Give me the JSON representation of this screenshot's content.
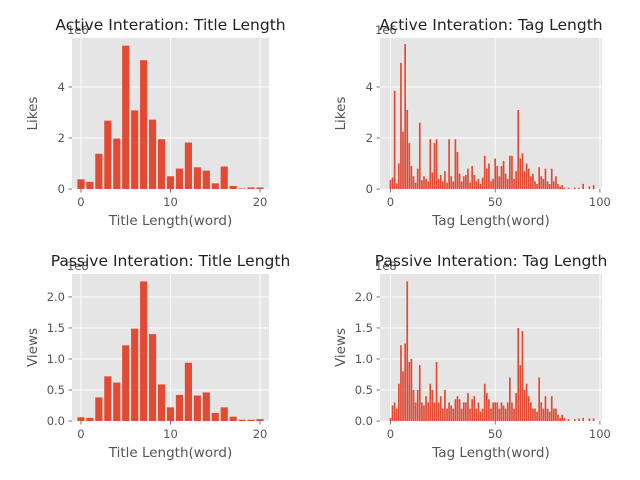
{
  "chart_data": [
    {
      "type": "bar",
      "title": "Active Interation: Title Length",
      "xlabel": "Title Length(word)",
      "ylabel": "Likes",
      "offset_text": "1e6",
      "xlim": [
        -1,
        21
      ],
      "ylim": [
        0,
        5.92
      ],
      "xticks": [
        0,
        10,
        20
      ],
      "yticks": [
        0,
        2,
        4
      ],
      "scale": 1000000,
      "grid": true,
      "bar_width": 0.8,
      "x": [
        0,
        1,
        2,
        3,
        4,
        5,
        6,
        7,
        8,
        9,
        10,
        11,
        12,
        13,
        14,
        15,
        16,
        17,
        18,
        19,
        20
      ],
      "values": [
        0.38,
        0.28,
        1.38,
        2.68,
        1.98,
        5.62,
        3.08,
        5.05,
        2.72,
        1.95,
        0.5,
        0.8,
        1.82,
        0.85,
        0.72,
        0.22,
        0.88,
        0.12,
        0.02,
        0.06,
        0.06
      ]
    },
    {
      "type": "bar",
      "title": "Active Interation: Tag Length",
      "xlabel": "Tag Length(word)",
      "ylabel": "Likes",
      "offset_text": "1e6",
      "xlim": [
        -5,
        101
      ],
      "ylim": [
        0,
        5.92
      ],
      "xticks": [
        0,
        50,
        100
      ],
      "yticks": [
        0,
        2,
        4
      ],
      "scale": 1000000,
      "grid": true,
      "bar_width": 0.8,
      "x": [
        0,
        1,
        2,
        3,
        4,
        5,
        6,
        7,
        8,
        9,
        10,
        11,
        12,
        13,
        14,
        15,
        16,
        17,
        18,
        19,
        20,
        21,
        22,
        23,
        24,
        25,
        26,
        27,
        28,
        29,
        30,
        31,
        32,
        33,
        34,
        35,
        36,
        37,
        38,
        39,
        40,
        41,
        42,
        43,
        44,
        45,
        46,
        47,
        48,
        49,
        50,
        51,
        52,
        53,
        54,
        55,
        56,
        57,
        58,
        59,
        60,
        61,
        62,
        63,
        64,
        65,
        66,
        67,
        68,
        69,
        70,
        71,
        72,
        73,
        74,
        75,
        76,
        77,
        78,
        79,
        80,
        81,
        82,
        83,
        85,
        88,
        90,
        92,
        95,
        97
      ],
      "values": [
        0.35,
        0.45,
        3.85,
        0.22,
        1.0,
        4.95,
        2.25,
        5.68,
        3.1,
        1.8,
        0.9,
        0.5,
        0.25,
        0.8,
        2.6,
        0.35,
        0.5,
        0.4,
        0.3,
        1.95,
        0.65,
        1.8,
        1.95,
        0.4,
        0.55,
        0.3,
        0.7,
        0.25,
        1.95,
        0.5,
        0.3,
        1.95,
        1.45,
        0.6,
        0.3,
        0.5,
        0.55,
        0.8,
        0.25,
        0.9,
        0.55,
        0.3,
        0.4,
        0.2,
        0.45,
        1.3,
        0.8,
        1.0,
        0.3,
        0.4,
        1.2,
        0.9,
        0.5,
        0.9,
        1.1,
        0.6,
        0.4,
        1.3,
        1.3,
        0.4,
        0.7,
        3.1,
        1.2,
        1.4,
        0.7,
        1.0,
        0.8,
        0.5,
        0.6,
        0.3,
        0.2,
        0.85,
        0.5,
        0.4,
        0.8,
        0.3,
        0.2,
        0.8,
        0.3,
        0.5,
        0.2,
        0.1,
        0.15,
        0.05,
        0.05,
        0.05,
        0.05,
        0.2,
        0.1,
        0.15
      ]
    },
    {
      "type": "bar",
      "title": "Passive Interation: Title Length",
      "xlabel": "Title Length(word)",
      "ylabel": "Views",
      "offset_text": "1e8",
      "xlim": [
        -1,
        21
      ],
      "ylim": [
        0,
        2.37
      ],
      "xticks": [
        0,
        10,
        20
      ],
      "yticks": [
        0.0,
        0.5,
        1.0,
        1.5,
        2.0
      ],
      "scale": 100000000,
      "grid": true,
      "bar_width": 0.8,
      "x": [
        0,
        1,
        2,
        3,
        4,
        5,
        6,
        7,
        8,
        9,
        10,
        11,
        12,
        13,
        14,
        15,
        16,
        17,
        18,
        19,
        20
      ],
      "values": [
        0.06,
        0.05,
        0.38,
        0.72,
        0.62,
        1.22,
        1.49,
        2.25,
        1.4,
        0.59,
        0.22,
        0.42,
        0.94,
        0.41,
        0.46,
        0.13,
        0.22,
        0.07,
        0.02,
        0.02,
        0.03
      ]
    },
    {
      "type": "bar",
      "title": "Passive Interation: Tag Length",
      "xlabel": "Tag Length(word)",
      "ylabel": "Views",
      "offset_text": "1e8",
      "xlim": [
        -5,
        101
      ],
      "ylim": [
        0,
        2.37
      ],
      "xticks": [
        0,
        50,
        100
      ],
      "yticks": [
        0.0,
        0.5,
        1.0,
        1.5,
        2.0
      ],
      "scale": 100000000,
      "grid": true,
      "bar_width": 0.8,
      "x": [
        0,
        1,
        2,
        3,
        4,
        5,
        6,
        7,
        8,
        9,
        10,
        11,
        12,
        13,
        14,
        15,
        16,
        17,
        18,
        19,
        20,
        21,
        22,
        23,
        24,
        25,
        26,
        27,
        28,
        29,
        30,
        31,
        32,
        33,
        34,
        35,
        36,
        37,
        38,
        39,
        40,
        41,
        42,
        43,
        44,
        45,
        46,
        47,
        48,
        49,
        50,
        51,
        52,
        53,
        54,
        55,
        56,
        57,
        58,
        59,
        60,
        61,
        62,
        63,
        64,
        65,
        66,
        67,
        68,
        69,
        70,
        71,
        72,
        73,
        74,
        75,
        76,
        77,
        78,
        79,
        80,
        81,
        82,
        83,
        85,
        88,
        90,
        92,
        95,
        97
      ],
      "values": [
        0.05,
        0.25,
        0.3,
        0.2,
        0.6,
        1.22,
        0.8,
        1.25,
        2.25,
        0.95,
        1.0,
        0.5,
        0.3,
        0.5,
        0.9,
        0.3,
        0.25,
        0.4,
        0.3,
        0.6,
        0.5,
        0.3,
        0.95,
        0.3,
        0.4,
        0.2,
        0.5,
        0.2,
        0.3,
        0.25,
        0.2,
        0.35,
        0.4,
        0.35,
        0.2,
        0.3,
        0.3,
        0.45,
        0.2,
        0.35,
        0.4,
        0.2,
        0.3,
        0.15,
        0.2,
        0.6,
        0.45,
        0.35,
        0.2,
        0.3,
        0.3,
        0.3,
        0.2,
        0.3,
        0.25,
        0.2,
        0.3,
        0.7,
        0.3,
        0.2,
        0.45,
        1.5,
        0.9,
        1.45,
        0.5,
        0.6,
        0.4,
        0.3,
        0.2,
        0.2,
        0.15,
        0.7,
        0.3,
        0.2,
        0.4,
        0.2,
        0.15,
        0.4,
        0.2,
        0.2,
        0.1,
        0.05,
        0.1,
        0.05,
        0.03,
        0.03,
        0.04,
        0.05,
        0.04,
        0.04
      ]
    }
  ],
  "colors": {
    "figure_background": "#ffffff",
    "axes_background": "#e5e5e5",
    "grid": "#ffffff",
    "bar": "#e24a33",
    "text": "#555555",
    "title": "#222222"
  }
}
